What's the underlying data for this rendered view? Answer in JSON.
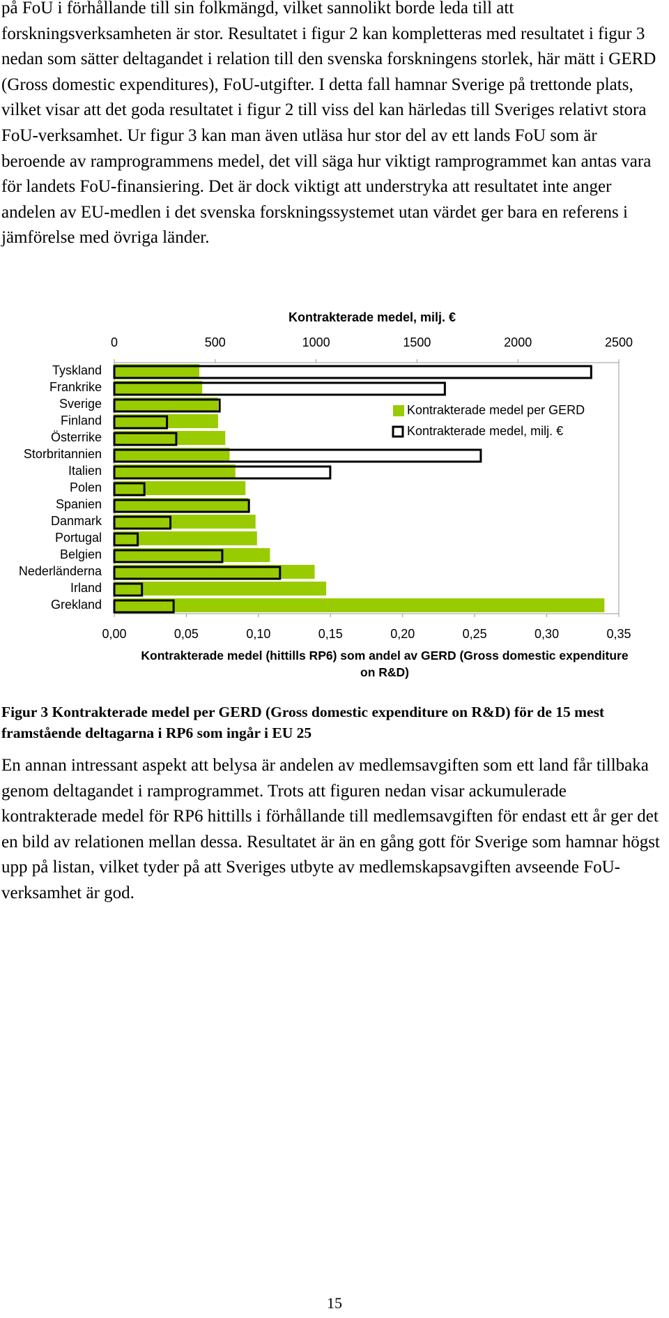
{
  "paragraphs": [
    "på FoU i förhållande till sin folkmängd, vilket sannolikt borde leda till att forskningsverksamheten är stor. Resultatet i figur 2 kan kompletteras med resultatet i figur 3 nedan som sätter deltagandet i relation till den svenska forskningens storlek, här mätt i GERD (Gross domestic expenditures), FoU-utgifter. I detta fall hamnar Sverige på trettonde plats, vilket visar att det goda resultatet i figur 2 till viss del kan härledas till Sveriges relativt stora FoU-verksamhet. Ur figur 3 kan man även utläsa hur stor del av ett lands FoU som är beroende av ramprogrammens medel, det vill säga hur viktigt ramprogrammet kan antas vara för landets FoU-finansiering. Det är dock viktigt att understryka att resultatet inte anger andelen av EU-medlen i det svenska forskningssystemet utan värdet ger bara en referens i jämförelse med övriga länder.",
    "En annan intressant aspekt att belysa är andelen av medlemsavgiften som ett land får tillbaka genom deltagandet i ramprogrammet. Trots att figuren nedan visar ackumulerade kontrakterade medel för RP6 hittills i förhållande till medlemsavgiften för endast ett år ger det en bild av relationen mellan dessa. Resultatet är än en gång gott för Sverige som hamnar högst upp på listan, vilket tyder på att Sveriges utbyte av medlemskapsavgiften avseende FoU-verksamhet är god."
  ],
  "chart_data": {
    "type": "hbar",
    "x_label": "Kontrakterade medel (hittills RP6) som andel av GERD (Gross domestic expenditure on R&D)",
    "x2_label": "Kontrakterade medel, milj. €",
    "categories": [
      "Tyskland",
      "Frankrike",
      "Sverige",
      "Finland",
      "Österrike",
      "Storbritannien",
      "Italien",
      "Polen",
      "Spanien",
      "Danmark",
      "Portugal",
      "Belgien",
      "Nederländerna",
      "Irland",
      "Grekland"
    ],
    "series": [
      {
        "name": "Kontrakterade medel per GERD",
        "color": "#99cc00",
        "values": [
          0.059,
          0.061,
          0.072,
          0.072,
          0.077,
          0.08,
          0.084,
          0.091,
          0.093,
          0.098,
          0.099,
          0.108,
          0.139,
          0.147,
          0.34
        ]
      },
      {
        "name": "Kontrakterade medel, milj. €",
        "color": "#ffffff",
        "axis": "x2",
        "values": [
          2363,
          1638,
          522,
          261,
          307,
          1816,
          1070,
          149,
          667,
          278,
          116,
          535,
          821,
          137,
          294
        ]
      }
    ],
    "xlim": [
      0,
      0.35
    ],
    "xticks": [
      {
        "value": 0,
        "label": "0,00"
      },
      {
        "value": 0.05,
        "label": "0,05"
      },
      {
        "value": 0.1,
        "label": "0,10"
      },
      {
        "value": 0.15,
        "label": "0,15"
      },
      {
        "value": 0.2,
        "label": "0,20"
      },
      {
        "value": 0.25,
        "label": "0,25"
      },
      {
        "value": 0.3,
        "label": "0,30"
      },
      {
        "value": 0.35,
        "label": "0,35"
      }
    ],
    "x2lim": [
      0,
      2500
    ],
    "x2ticks": [
      0,
      500,
      1000,
      1500,
      2000,
      2500
    ]
  },
  "caption": "Figur 3 Kontrakterade medel per GERD (Gross domestic expenditure on R&D) för de 15 mest framstående deltagarna i RP6 som ingår i EU 25",
  "page_number": "15"
}
